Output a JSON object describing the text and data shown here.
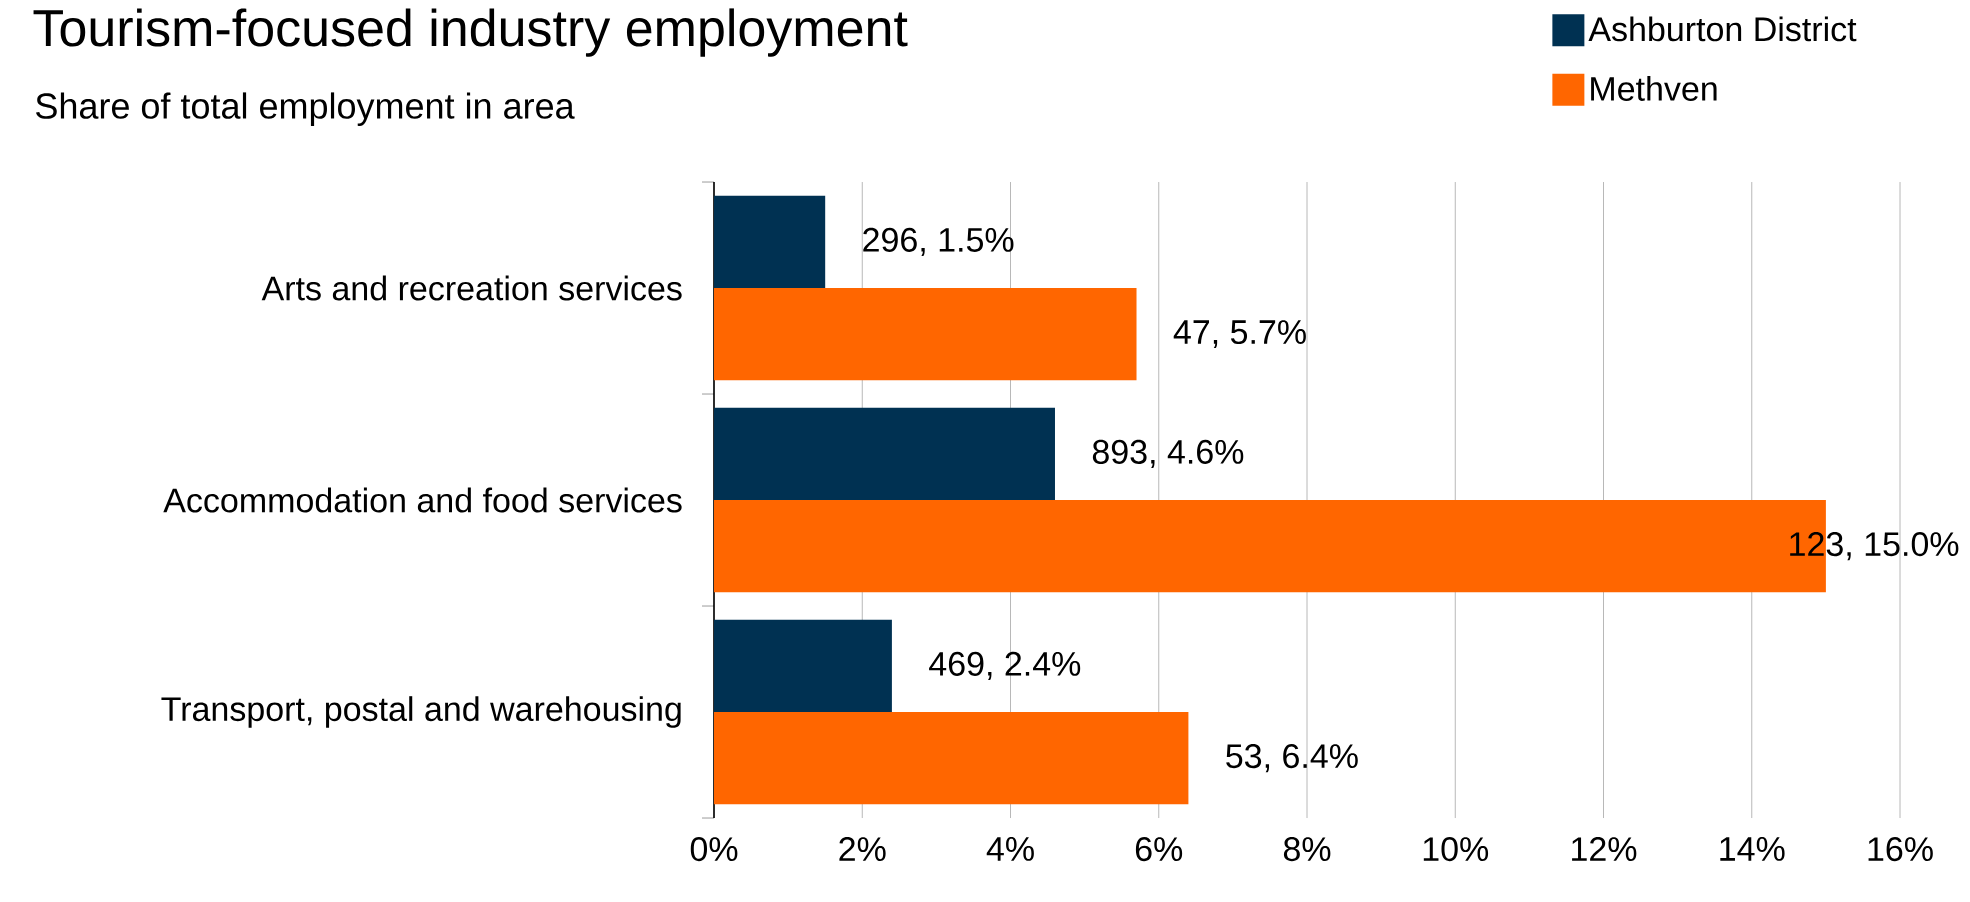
{
  "chart_data": {
    "type": "bar",
    "orientation": "horizontal",
    "title": "Tourism-focused industry employment",
    "subtitle": "Share of total employment in area",
    "categories": [
      "Arts and recreation services",
      "Accommodation and food services",
      "Transport, postal and warehousing"
    ],
    "series": [
      {
        "name": "Ashburton District",
        "color": "#003152",
        "values": [
          1.5,
          4.6,
          2.4
        ],
        "value_labels": [
          "296, 1.5%",
          "893, 4.6%",
          "469, 2.4%"
        ]
      },
      {
        "name": "Methven",
        "color": "#ff6600",
        "values": [
          5.7,
          15.0,
          6.4
        ],
        "value_labels": [
          "47, 5.7%",
          "123, 15.0%",
          "53, 6.4%"
        ]
      }
    ],
    "xlim": [
      0,
      16
    ],
    "xticks": [
      {
        "value": 0,
        "label": "0%"
      },
      {
        "value": 2,
        "label": "2%"
      },
      {
        "value": 4,
        "label": "4%"
      },
      {
        "value": 6,
        "label": "6%"
      },
      {
        "value": 8,
        "label": "8%"
      },
      {
        "value": 10,
        "label": "10%"
      },
      {
        "value": 12,
        "label": "12%"
      },
      {
        "value": 14,
        "label": "14%"
      },
      {
        "value": 16,
        "label": "16%"
      }
    ],
    "grid": "x",
    "legend": "top right"
  }
}
